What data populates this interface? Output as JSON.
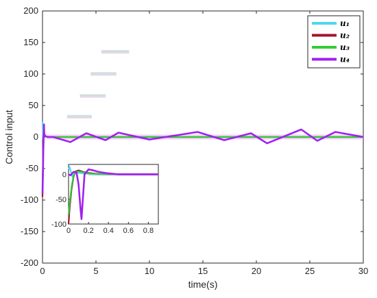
{
  "chart_data": {
    "type": "line",
    "title": "",
    "xlabel": "time(s)",
    "ylabel": "Control input",
    "xlim": [
      0,
      30
    ],
    "ylim": [
      -200,
      200
    ],
    "xticks": [
      "0",
      "5",
      "10",
      "15",
      "20",
      "25",
      "30"
    ],
    "yticks": [
      "-200",
      "-150",
      "-100",
      "-50",
      "0",
      "50",
      "100",
      "150",
      "200"
    ],
    "legend_position": "top-right",
    "grid": false,
    "series": [
      {
        "name": "u₁",
        "sub": "1",
        "color": "#4dd9ec",
        "x": [
          0,
          0.03,
          0.06,
          0.09,
          0.12,
          0.2,
          0.3,
          0.5,
          1,
          5,
          10,
          15,
          20,
          25,
          30
        ],
        "y": [
          25,
          10,
          -5,
          20,
          5,
          2,
          1,
          0,
          0,
          0,
          0,
          0,
          0,
          0,
          0
        ]
      },
      {
        "name": "u₂",
        "sub": "2",
        "color": "#a2142f",
        "x": [
          0,
          0.03,
          0.06,
          0.1,
          0.15,
          0.2,
          0.3,
          0.5,
          1,
          5,
          10,
          15,
          20,
          25,
          30
        ],
        "y": [
          -95,
          -60,
          -20,
          5,
          8,
          4,
          1,
          0,
          0,
          0,
          0,
          0,
          0,
          0,
          0
        ]
      },
      {
        "name": "u₃",
        "sub": "3",
        "color": "#33cc33",
        "x": [
          0,
          0.03,
          0.06,
          0.1,
          0.15,
          0.2,
          0.3,
          0.5,
          1,
          5,
          10,
          15,
          20,
          25,
          30
        ],
        "y": [
          -80,
          -50,
          -15,
          3,
          6,
          3,
          1,
          0,
          0,
          0,
          0,
          0,
          0,
          0,
          0
        ]
      },
      {
        "name": "u₄",
        "sub": "4",
        "color": "#a020f0",
        "x": [
          0,
          0.04,
          0.08,
          0.1,
          0.12,
          0.14,
          0.16,
          0.2,
          0.3,
          0.5,
          1,
          2.6,
          4.1,
          5.9,
          7.1,
          10,
          14.5,
          17,
          19.5,
          21,
          24.2,
          25.7,
          27.4,
          30
        ],
        "y": [
          -90,
          -60,
          -20,
          -5,
          8,
          20,
          5,
          2,
          1,
          0,
          0,
          -8,
          6,
          -5,
          7,
          -4,
          8,
          -5,
          6,
          -10,
          12,
          -6,
          8,
          0
        ]
      }
    ],
    "inset": {
      "xlim": [
        0,
        0.9
      ],
      "ylim": [
        -100,
        20
      ],
      "xticks": [
        "0",
        "0.2",
        "0.4",
        "0.6",
        "0.8"
      ],
      "yticks": [
        "-100",
        "-50",
        "0"
      ],
      "series": [
        {
          "name": "u₁",
          "color": "#4dd9ec",
          "x": [
            0,
            0.01,
            0.02,
            0.04,
            0.06,
            0.08,
            0.1,
            0.15,
            0.2,
            0.3,
            0.5,
            0.9
          ],
          "y": [
            10,
            15,
            8,
            -5,
            2,
            4,
            3,
            2,
            1,
            0,
            0,
            0
          ]
        },
        {
          "name": "u₂",
          "color": "#a2142f",
          "x": [
            0,
            0.01,
            0.03,
            0.05,
            0.07,
            0.1,
            0.15,
            0.2,
            0.3,
            0.5,
            0.9
          ],
          "y": [
            -100,
            -70,
            -30,
            -5,
            6,
            8,
            5,
            3,
            1,
            0,
            0
          ]
        },
        {
          "name": "u₃",
          "color": "#33cc33",
          "x": [
            0,
            0.01,
            0.03,
            0.05,
            0.07,
            0.1,
            0.15,
            0.2,
            0.3,
            0.5,
            0.9
          ],
          "y": [
            -82,
            -60,
            -25,
            -3,
            5,
            6,
            4,
            2,
            1,
            0,
            0
          ]
        },
        {
          "name": "u₄",
          "color": "#a020f0",
          "x": [
            0,
            0.02,
            0.05,
            0.08,
            0.1,
            0.12,
            0.13,
            0.14,
            0.16,
            0.2,
            0.25,
            0.3,
            0.4,
            0.5,
            0.9
          ],
          "y": [
            0,
            -2,
            5,
            4,
            -20,
            -70,
            -90,
            -60,
            0,
            10,
            8,
            5,
            2,
            0,
            0
          ]
        }
      ]
    },
    "step_annotations": [
      {
        "x1": 2.3,
        "x2": 4.6,
        "y": 32
      },
      {
        "x1": 3.5,
        "x2": 5.9,
        "y": 65
      },
      {
        "x1": 4.5,
        "x2": 6.9,
        "y": 100
      },
      {
        "x1": 5.5,
        "x2": 8.1,
        "y": 135
      }
    ]
  }
}
